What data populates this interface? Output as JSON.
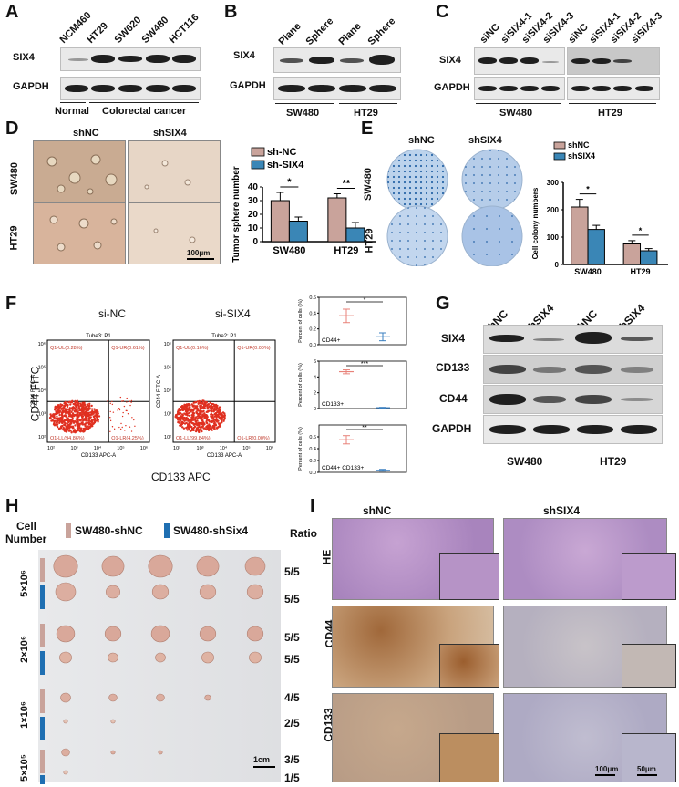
{
  "panels": {
    "A": {
      "label": "A",
      "lanes": [
        "NCM460",
        "HT29",
        "SW620",
        "SW480",
        "HCT116"
      ],
      "rows": [
        "SIX4",
        "GAPDH"
      ],
      "group_normal": "Normal",
      "group_crc": "Colorectal cancer"
    },
    "B": {
      "label": "B",
      "lanes": [
        "Plane",
        "Sphere",
        "Plane",
        "Sphere"
      ],
      "rows": [
        "SIX4",
        "GAPDH"
      ],
      "groups": [
        "SW480",
        "HT29"
      ]
    },
    "C": {
      "label": "C",
      "lanes": [
        "siNC",
        "siSIX4-1",
        "siSIX4-2",
        "siSIX4-3",
        "siNC",
        "siSIX4-1",
        "siSIX4-2",
        "siSIX4-3"
      ],
      "rows": [
        "SIX4",
        "GAPDH"
      ],
      "groups": [
        "SW480",
        "HT29"
      ]
    },
    "D": {
      "label": "D",
      "col_labels": [
        "shNC",
        "shSIX4"
      ],
      "row_labels": [
        "SW480",
        "HT29"
      ],
      "scale_bar": "100μm",
      "chart": {
        "ylabel": "Tumor sphere number",
        "categories": [
          "SW480",
          "HT29"
        ],
        "ticks": [
          "0",
          "10",
          "20",
          "30",
          "40"
        ],
        "legend": [
          "sh-NC",
          "sh-SIX4"
        ],
        "sig": [
          "*",
          "**"
        ]
      }
    },
    "E": {
      "label": "E",
      "col_labels": [
        "shNC",
        "shSIX4"
      ],
      "row_labels": [
        "SW480",
        "HT29"
      ],
      "chart": {
        "ylabel": "Cell colony numbers",
        "categories": [
          "SW480",
          "HT29"
        ],
        "ticks": [
          "0",
          "100",
          "200",
          "300"
        ],
        "legend": [
          "shNC",
          "shSIX4"
        ],
        "sig": [
          "*",
          "*"
        ]
      }
    },
    "F": {
      "label": "F",
      "titles": [
        "si-NC",
        "si-SIX4"
      ],
      "tube_labels": [
        "Tube3: P1",
        "Tube2: P1"
      ],
      "ylabel": "CD44 FITC",
      "xlabel": "CD133 APC",
      "inner_xlabel": "CD133 APC-A",
      "inner_ylabel": "CD44 FITC-A",
      "quads_nc": [
        "Q1-UL(0.28%)",
        "Q1-UR(0.61%)",
        "Q1-LL(94.86%)",
        "Q1-LR(4.25%)"
      ],
      "quads_si": [
        "Q1-UL(0.16%)",
        "Q1-UR(0.00%)",
        "Q1-LL(99.84%)",
        "Q1-LR(0.00%)"
      ],
      "plot_ticks": [
        "10²",
        "10³",
        "10⁴",
        "10⁵",
        "10⁶"
      ],
      "dot_plots": [
        {
          "tag": "CD44+",
          "sig": "*",
          "ylabel": "Percent of cells (%)",
          "ticks": [
            "0.0",
            "0.2",
            "0.4",
            "0.6"
          ]
        },
        {
          "tag": "CD133+",
          "sig": "***",
          "ylabel": "Percent of cells (%)",
          "ticks": [
            "0",
            "2",
            "4",
            "6"
          ]
        },
        {
          "tag": "CD44+ CD133+",
          "sig": "**",
          "ylabel": "Percent of cells (%)",
          "ticks": [
            "0.0",
            "0.2",
            "0.4",
            "0.6"
          ]
        }
      ]
    },
    "G": {
      "label": "G",
      "lanes": [
        "shNC",
        "shSIX4",
        "shNC",
        "shSIX4"
      ],
      "rows": [
        "SIX4",
        "CD133",
        "CD44",
        "GAPDH"
      ],
      "groups": [
        "SW480",
        "HT29"
      ]
    },
    "H": {
      "label": "H",
      "cell_header": "Cell",
      "number_header": "Number",
      "legend": [
        "SW480-shNC",
        "SW480-shSix4"
      ],
      "ratio_header": "Ratio",
      "doses": [
        "5×10⁶",
        "2×10⁶",
        "1×10⁶",
        "5×10⁵"
      ],
      "ratios": [
        "5/5",
        "5/5",
        "5/5",
        "5/5",
        "4/5",
        "2/5",
        "3/5",
        "1/5"
      ],
      "scale_bar": "1cm"
    },
    "I": {
      "label": "I",
      "col_labels": [
        "shNC",
        "shSIX4"
      ],
      "row_labels": [
        "HE",
        "CD44",
        "CD133"
      ],
      "scale_big": "100μm",
      "scale_small": "50μm"
    }
  },
  "colors": {
    "shNC_bar": "#c9a39b",
    "shSIX4_bar": "#3a86b6",
    "flow_dots": "#e03020",
    "dot_nc": "#e8827a",
    "dot_si": "#3a7fc0",
    "he_stain": "#b98ec7",
    "ihc_brown": "#a06a3a",
    "ihc_blue": "#b9b9d4"
  },
  "chart_data": [
    {
      "type": "bar",
      "panel": "D",
      "categories": [
        "SW480",
        "HT29"
      ],
      "series": [
        {
          "name": "sh-NC",
          "values": [
            30,
            32
          ],
          "errors": [
            6,
            3
          ]
        },
        {
          "name": "sh-SIX4",
          "values": [
            15,
            10
          ],
          "errors": [
            3,
            4
          ]
        }
      ],
      "xlabel": "",
      "ylabel": "Tumor sphere number",
      "ylim": [
        0,
        40
      ],
      "legend": "top-right"
    },
    {
      "type": "bar",
      "panel": "E",
      "categories": [
        "SW480",
        "HT29"
      ],
      "series": [
        {
          "name": "shNC",
          "values": [
            210,
            75
          ],
          "errors": [
            28,
            12
          ]
        },
        {
          "name": "shSIX4",
          "values": [
            128,
            50
          ],
          "errors": [
            15,
            8
          ]
        }
      ],
      "xlabel": "",
      "ylabel": "Cell colony numbers",
      "ylim": [
        0,
        300
      ],
      "legend": "top-right"
    },
    {
      "type": "scatter",
      "panel": "F",
      "subplots": [
        {
          "name": "CD44+",
          "groups": [
            {
              "values": [
                0.45,
                0.37,
                0.28
              ]
            },
            {
              "values": [
                0.15,
                0.1,
                0.05
              ]
            }
          ],
          "ylim": [
            0,
            0.6
          ]
        },
        {
          "name": "CD133+",
          "groups": [
            {
              "values": [
                4.9,
                4.7,
                4.4
              ]
            },
            {
              "values": [
                0.15,
                0.1,
                0.05
              ]
            }
          ],
          "ylim": [
            0,
            6
          ]
        },
        {
          "name": "CD44+ CD133+",
          "groups": [
            {
              "values": [
                0.62,
                0.55,
                0.48
              ]
            },
            {
              "values": [
                0.05,
                0.03,
                0.02
              ]
            }
          ],
          "ylim": [
            0,
            0.8
          ]
        }
      ]
    }
  ]
}
